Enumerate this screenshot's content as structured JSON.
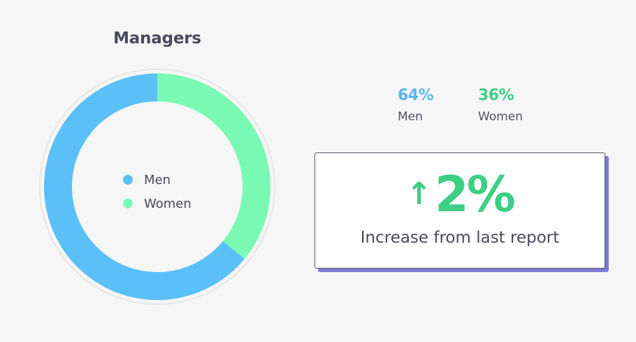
{
  "title": "Managers",
  "colors": {
    "men": "#5bc0f8",
    "women": "#79f9b3",
    "men_text": "#5bb7ef",
    "women_text": "#3ecf84",
    "card_shadow": "#7a7bd6"
  },
  "chart_data": {
    "type": "pie",
    "variant": "donut",
    "title": "Managers",
    "series": [
      {
        "name": "Men",
        "value": 64
      },
      {
        "name": "Women",
        "value": 36
      }
    ],
    "legend": [
      "Men",
      "Women"
    ],
    "legend_position": "center"
  },
  "stats": [
    {
      "pct": "64%",
      "label": "Men"
    },
    {
      "pct": "36%",
      "label": "Women"
    }
  ],
  "card": {
    "arrow_icon": "arrow-up-icon",
    "arrow": "↑",
    "value": "2%",
    "caption": "Increase from last report"
  }
}
